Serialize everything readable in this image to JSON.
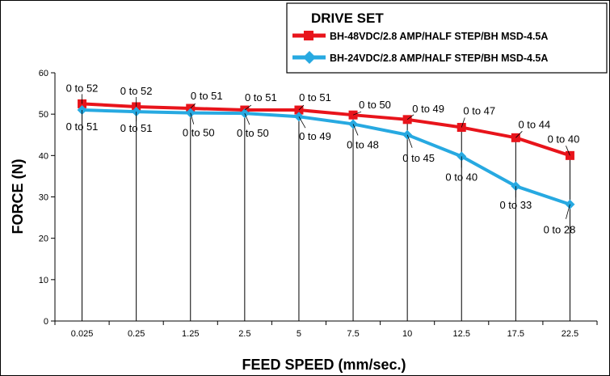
{
  "chart_data": {
    "type": "line",
    "title": "",
    "xlabel": "FEED SPEED (mm/sec.)",
    "ylabel": "FORCE (N)",
    "categories": [
      "0.025",
      "0.25",
      "1.25",
      "2.5",
      "5",
      "7.5",
      "10",
      "12.5",
      "17.5",
      "22.5"
    ],
    "ylim": [
      0,
      60
    ],
    "yticks": [
      "0",
      "10",
      "20",
      "30",
      "40",
      "50",
      "60"
    ],
    "legend": {
      "title": "DRIVE SET",
      "position": "top-right"
    },
    "series": [
      {
        "name": "BH-48VDC/2.8 AMP/HALF STEP/BH MSD-4.5A",
        "color": "#e8141b",
        "marker": "square",
        "values": [
          52.5,
          51.8,
          51.4,
          51.0,
          51.0,
          49.8,
          48.7,
          46.8,
          44.3,
          40.0
        ],
        "labels": [
          "0 to 52",
          "0 to 52",
          "0 to 51",
          "0 to 51",
          "0 to 51",
          "0 to 50",
          "0 to 49",
          "0 to 47",
          "0 to 44",
          "0 to 40"
        ]
      },
      {
        "name": "BH-24VDC/2.8 AMP/HALF STEP/BH MSD-4.5A",
        "color": "#27a9e1",
        "marker": "diamond",
        "values": [
          51.0,
          50.6,
          50.3,
          50.2,
          49.4,
          47.6,
          45.0,
          39.8,
          32.6,
          28.2
        ],
        "labels": [
          "0 to 51",
          "0 to 51",
          "0 to 50",
          "0 to 50",
          "0 to 49",
          "0 to 48",
          "0 to 45",
          "0 to 40",
          "0 to 33",
          "0 to 28"
        ]
      }
    ]
  }
}
